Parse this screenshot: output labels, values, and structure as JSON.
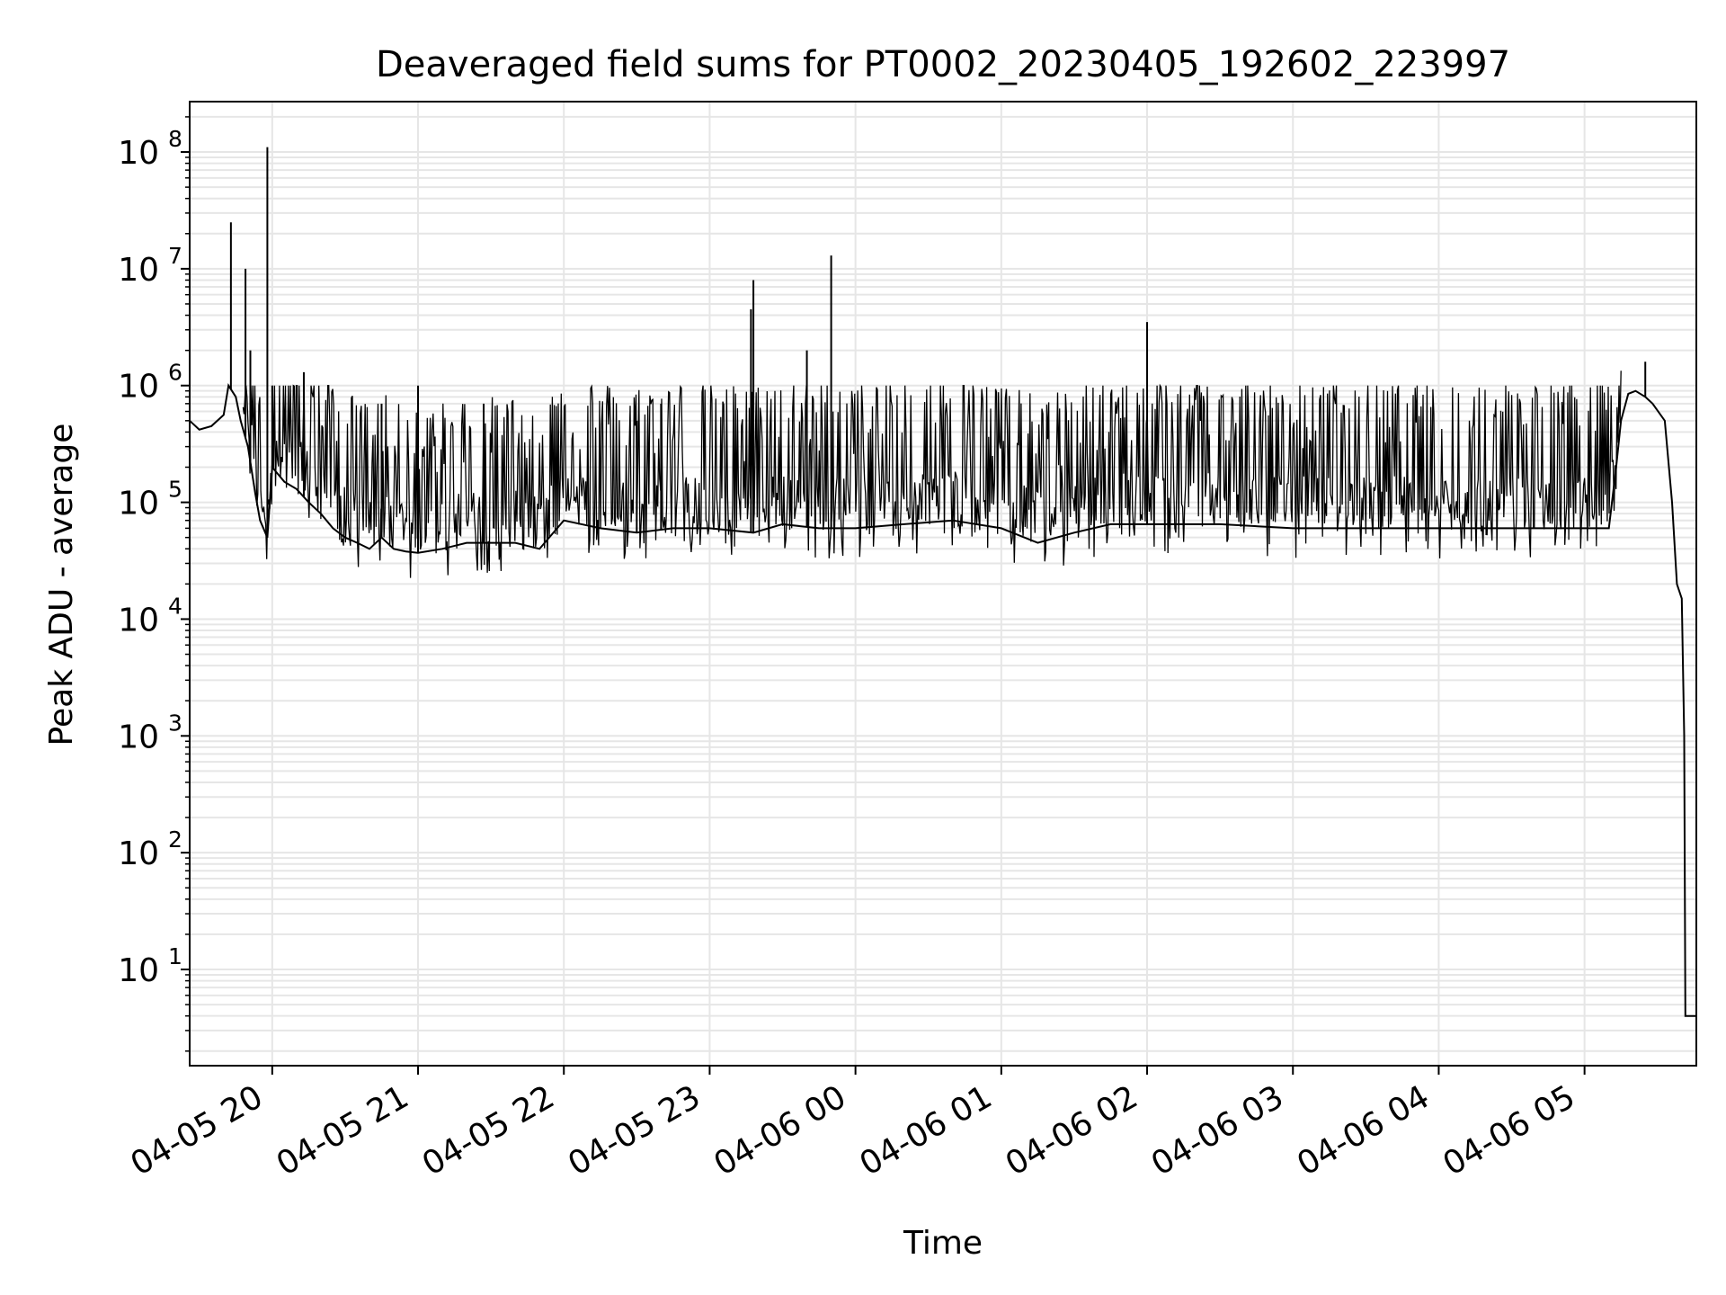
{
  "chart_data": {
    "type": "line",
    "title": "Deaveraged field sums for PT0002_20230405_192602_223997",
    "xlabel": "Time",
    "ylabel": "Peak ADU - average",
    "x_type": "datetime",
    "xlim": [
      "2023-04-05 19:26:02",
      "2023-04-06 05:46:00"
    ],
    "yscale": "log",
    "ylim": [
      1.5,
      270000000
    ],
    "grid": true,
    "line_color": "#000000",
    "grid_color": "#e6e6e6",
    "x_ticks": [
      {
        "t": "2023-04-05 20:00",
        "label": "04-05 20"
      },
      {
        "t": "2023-04-05 21:00",
        "label": "04-05 21"
      },
      {
        "t": "2023-04-05 22:00",
        "label": "04-05 22"
      },
      {
        "t": "2023-04-05 23:00",
        "label": "04-05 23"
      },
      {
        "t": "2023-04-06 00:00",
        "label": "04-06 00"
      },
      {
        "t": "2023-04-06 01:00",
        "label": "04-06 01"
      },
      {
        "t": "2023-04-06 02:00",
        "label": "04-06 02"
      },
      {
        "t": "2023-04-06 03:00",
        "label": "04-06 03"
      },
      {
        "t": "2023-04-06 04:00",
        "label": "04-06 04"
      },
      {
        "t": "2023-04-06 05:00",
        "label": "04-06 05"
      }
    ],
    "y_ticks": [
      {
        "value": 10,
        "base": "10",
        "exp": "1"
      },
      {
        "value": 100,
        "base": "10",
        "exp": "2"
      },
      {
        "value": 1000,
        "base": "10",
        "exp": "3"
      },
      {
        "value": 10000,
        "base": "10",
        "exp": "4"
      },
      {
        "value": 100000,
        "base": "10",
        "exp": "5"
      },
      {
        "value": 1000000,
        "base": "10",
        "exp": "6"
      },
      {
        "value": 10000000,
        "base": "10",
        "exp": "7"
      },
      {
        "value": 100000000,
        "base": "10",
        "exp": "8"
      }
    ],
    "series": [
      {
        "x": [
          "2023-04-05 19:26:02",
          "2023-04-05 19:30",
          "2023-04-05 19:35",
          "2023-04-05 19:40",
          "2023-04-05 19:42",
          "2023-04-05 19:45",
          "2023-04-05 19:47",
          "2023-04-05 19:50",
          "2023-04-05 19:53",
          "2023-04-05 19:55",
          "2023-04-05 19:58",
          "2023-04-05 20:00",
          "2023-04-05 20:05",
          "2023-04-05 20:10",
          "2023-04-05 20:15",
          "2023-04-05 20:20",
          "2023-04-05 20:25",
          "2023-04-05 20:30",
          "2023-04-05 20:35",
          "2023-04-05 20:40",
          "2023-04-05 20:45",
          "2023-04-05 20:50",
          "2023-04-05 20:55",
          "2023-04-05 21:00",
          "2023-04-05 21:10",
          "2023-04-05 21:20",
          "2023-04-05 21:30",
          "2023-04-05 21:40",
          "2023-04-05 21:50",
          "2023-04-05 22:00",
          "2023-04-05 22:15",
          "2023-04-05 22:30",
          "2023-04-05 22:45",
          "2023-04-05 23:00",
          "2023-04-05 23:18",
          "2023-04-05 23:30",
          "2023-04-05 23:45",
          "2023-04-05 23:50",
          "2023-04-06 00:00",
          "2023-04-06 00:20",
          "2023-04-06 00:40",
          "2023-04-06 01:00",
          "2023-04-06 01:15",
          "2023-04-06 01:30",
          "2023-04-06 01:45",
          "2023-04-06 02:00",
          "2023-04-06 02:30",
          "2023-04-06 03:00",
          "2023-04-06 03:30",
          "2023-04-06 04:00",
          "2023-04-06 04:30",
          "2023-04-06 05:00",
          "2023-04-06 05:10",
          "2023-04-06 05:13",
          "2023-04-06 05:15",
          "2023-04-06 05:18",
          "2023-04-06 05:21",
          "2023-04-06 05:25",
          "2023-04-06 05:28",
          "2023-04-06 05:33",
          "2023-04-06 05:36",
          "2023-04-06 05:38",
          "2023-04-06 05:40",
          "2023-04-06 05:41",
          "2023-04-06 05:41:30",
          "2023-04-06 05:46"
        ],
        "y": [
          500000,
          420000,
          450000,
          560000,
          1000000,
          800000,
          500000,
          300000,
          120000,
          70000,
          50000,
          200000,
          150000,
          130000,
          100000,
          80000,
          60000,
          50000,
          45000,
          40000,
          50000,
          40000,
          38000,
          37000,
          40000,
          45000,
          45000,
          45000,
          40000,
          70000,
          60000,
          55000,
          60000,
          60000,
          55000,
          65000,
          60000,
          60000,
          60000,
          65000,
          70000,
          60000,
          45000,
          55000,
          65000,
          65000,
          65000,
          60000,
          60000,
          60000,
          60000,
          60000,
          60000,
          200000,
          500000,
          850000,
          900000,
          800000,
          700000,
          500000,
          100000,
          20000,
          15000,
          1000,
          4,
          4
        ]
      }
    ],
    "spikes": [
      {
        "t": "2023-04-05 19:43",
        "y": 25000000
      },
      {
        "t": "2023-04-05 19:49",
        "y": 10000000
      },
      {
        "t": "2023-04-05 19:51",
        "y": 2000000
      },
      {
        "t": "2023-04-05 19:58",
        "y": 110000000
      },
      {
        "t": "2023-04-05 20:00",
        "y": 1000000
      },
      {
        "t": "2023-04-05 20:13",
        "y": 1300000
      },
      {
        "t": "2023-04-05 20:45",
        "y": 700000
      },
      {
        "t": "2023-04-05 21:00",
        "y": 1000000
      },
      {
        "t": "2023-04-05 21:27",
        "y": 700000
      },
      {
        "t": "2023-04-05 22:30",
        "y": 500000
      },
      {
        "t": "2023-04-05 22:40",
        "y": 700000
      },
      {
        "t": "2023-04-05 23:17",
        "y": 4500000
      },
      {
        "t": "2023-04-05 23:18",
        "y": 8000000
      },
      {
        "t": "2023-04-05 23:40",
        "y": 2000000
      },
      {
        "t": "2023-04-05 23:50",
        "y": 13000000
      },
      {
        "t": "2023-04-06 02:00",
        "y": 3500000
      },
      {
        "t": "2023-04-06 05:25",
        "y": 1600000
      }
    ]
  }
}
